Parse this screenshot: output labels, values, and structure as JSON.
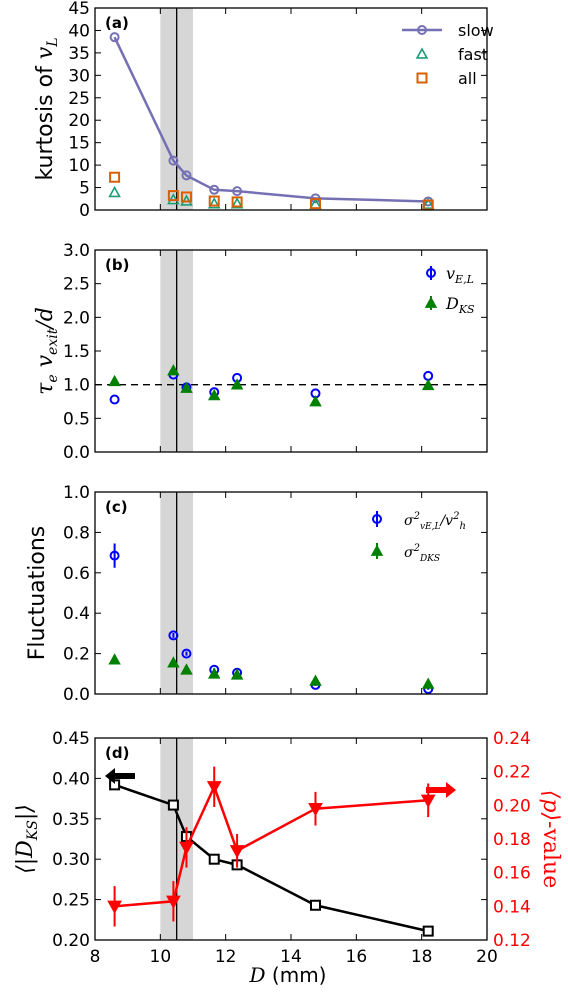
{
  "xaxis": {
    "label_var": "D",
    "label_unit": " (mm)",
    "ticks": [
      8,
      10,
      12,
      14,
      16,
      18,
      20
    ],
    "xlim": [
      8,
      20
    ]
  },
  "vline_x": 10.5,
  "band": [
    10.0,
    11.0
  ],
  "chart_data": [
    {
      "type": "line",
      "panel_label": "(a)",
      "ylabel_text": "kurtosis of ",
      "ylabel_var": "v",
      "ylabel_sub": "L",
      "ylim": [
        0,
        45
      ],
      "yticks": [
        0,
        5,
        10,
        15,
        20,
        25,
        30,
        35,
        40,
        45
      ],
      "legend_position": "top-right",
      "series": [
        {
          "name": "slow",
          "color": "#7570b3",
          "marker": "circle",
          "connected": true,
          "x": [
            8.6,
            10.4,
            10.8,
            11.65,
            12.35,
            14.75,
            18.2
          ],
          "y": [
            38.5,
            11.0,
            7.7,
            4.5,
            4.2,
            2.6,
            1.9
          ]
        },
        {
          "name": "fast",
          "color": "#1b9e77",
          "marker": "triangle",
          "connected": false,
          "x": [
            8.6,
            10.4,
            10.8,
            11.65,
            12.35,
            14.75,
            18.2
          ],
          "y": [
            3.9,
            2.3,
            2.0,
            1.4,
            1.4,
            1.3,
            1.3
          ]
        },
        {
          "name": "all",
          "color": "#d95f02",
          "marker": "square",
          "connected": false,
          "x": [
            8.6,
            10.4,
            10.8,
            11.65,
            12.35,
            14.75,
            18.2
          ],
          "y": [
            7.3,
            3.2,
            2.9,
            2.0,
            1.8,
            1.4,
            1.1
          ]
        }
      ]
    },
    {
      "type": "scatter",
      "panel_label": "(b)",
      "ylabel_tau": "τ",
      "ylabel_tau_sub": "e",
      "ylabel_v": "v",
      "ylabel_v_sub": "exit",
      "ylabel_tail": "/d",
      "ylim": [
        0,
        3.0
      ],
      "yticks": [
        0.0,
        0.5,
        1.0,
        1.5,
        2.0,
        2.5,
        3.0
      ],
      "reference_line_y": 1.0,
      "legend_position": "top-right",
      "series": [
        {
          "name_main": "v",
          "name_sub": "E,L",
          "color": "#0000ff",
          "marker": "circle",
          "x": [
            8.6,
            10.4,
            10.8,
            11.65,
            12.35,
            14.75,
            18.2
          ],
          "y": [
            0.78,
            1.15,
            0.96,
            0.89,
            1.1,
            0.87,
            1.13
          ]
        },
        {
          "name_main": "D",
          "name_sub": "KS",
          "color": "#008000",
          "marker": "triangle",
          "x": [
            8.6,
            10.4,
            10.8,
            11.65,
            12.35,
            14.75,
            18.2
          ],
          "y": [
            1.05,
            1.21,
            0.95,
            0.84,
            1.0,
            0.75,
            0.99
          ]
        }
      ]
    },
    {
      "type": "scatter",
      "panel_label": "(c)",
      "ylabel_text": "Fluctuations",
      "ylim": [
        0,
        1.0
      ],
      "yticks": [
        0.0,
        0.2,
        0.4,
        0.6,
        0.8,
        1.0
      ],
      "legend_position": "top-right",
      "series": [
        {
          "name_main": "σ",
          "name_sup": "2",
          "name_sub": "vE,L",
          "name_tail": "/v",
          "name_tail_sup": "2",
          "name_tail_sub": "h",
          "color": "#0000ff",
          "marker": "circle",
          "x": [
            8.6,
            10.4,
            10.8,
            11.65,
            12.35,
            14.75,
            18.2
          ],
          "y": [
            0.685,
            0.29,
            0.2,
            0.12,
            0.105,
            0.045,
            0.025
          ],
          "err": [
            0.06,
            0.012,
            0.01,
            0.008,
            0.008,
            0.005,
            0.004
          ]
        },
        {
          "name_main": "σ",
          "name_sup": "2",
          "name_sub": "DKS",
          "color": "#008000",
          "marker": "triangle",
          "x": [
            8.6,
            10.4,
            10.8,
            11.65,
            12.35,
            14.75,
            18.2
          ],
          "y": [
            0.17,
            0.155,
            0.12,
            0.1,
            0.095,
            0.065,
            0.05
          ],
          "err": [
            0.01,
            0.01,
            0.008,
            0.006,
            0.006,
            0.005,
            0.004
          ]
        }
      ]
    },
    {
      "type": "line",
      "panel_label": "(d)",
      "ylabel_left": "⟨|D",
      "ylabel_left_sub": "KS",
      "ylabel_left_tail": "|⟩",
      "ylabel_right_main": "⟨p⟩",
      "ylabel_right_tail": "-value",
      "ylim_left": [
        0.2,
        0.45
      ],
      "yticks_left": [
        0.2,
        0.25,
        0.3,
        0.35,
        0.4,
        0.45
      ],
      "ylim_right": [
        0.12,
        0.24
      ],
      "yticks_right": [
        0.12,
        0.14,
        0.16,
        0.18,
        0.2,
        0.22,
        0.24
      ],
      "series": [
        {
          "axis": "left",
          "color": "#000000",
          "marker": "square",
          "x": [
            8.6,
            10.4,
            10.8,
            11.65,
            12.35,
            14.75,
            18.2
          ],
          "y": [
            0.392,
            0.367,
            0.328,
            0.3,
            0.293,
            0.243,
            0.211
          ]
        },
        {
          "axis": "right",
          "color": "#ff0000",
          "marker": "triangle-down",
          "x": [
            8.6,
            10.4,
            10.8,
            11.65,
            12.35,
            14.75,
            18.2
          ],
          "y": [
            0.14,
            0.143,
            0.175,
            0.211,
            0.173,
            0.198,
            0.203
          ],
          "err": [
            0.012,
            0.012,
            0.012,
            0.012,
            0.01,
            0.01,
            0.01
          ]
        }
      ]
    }
  ]
}
